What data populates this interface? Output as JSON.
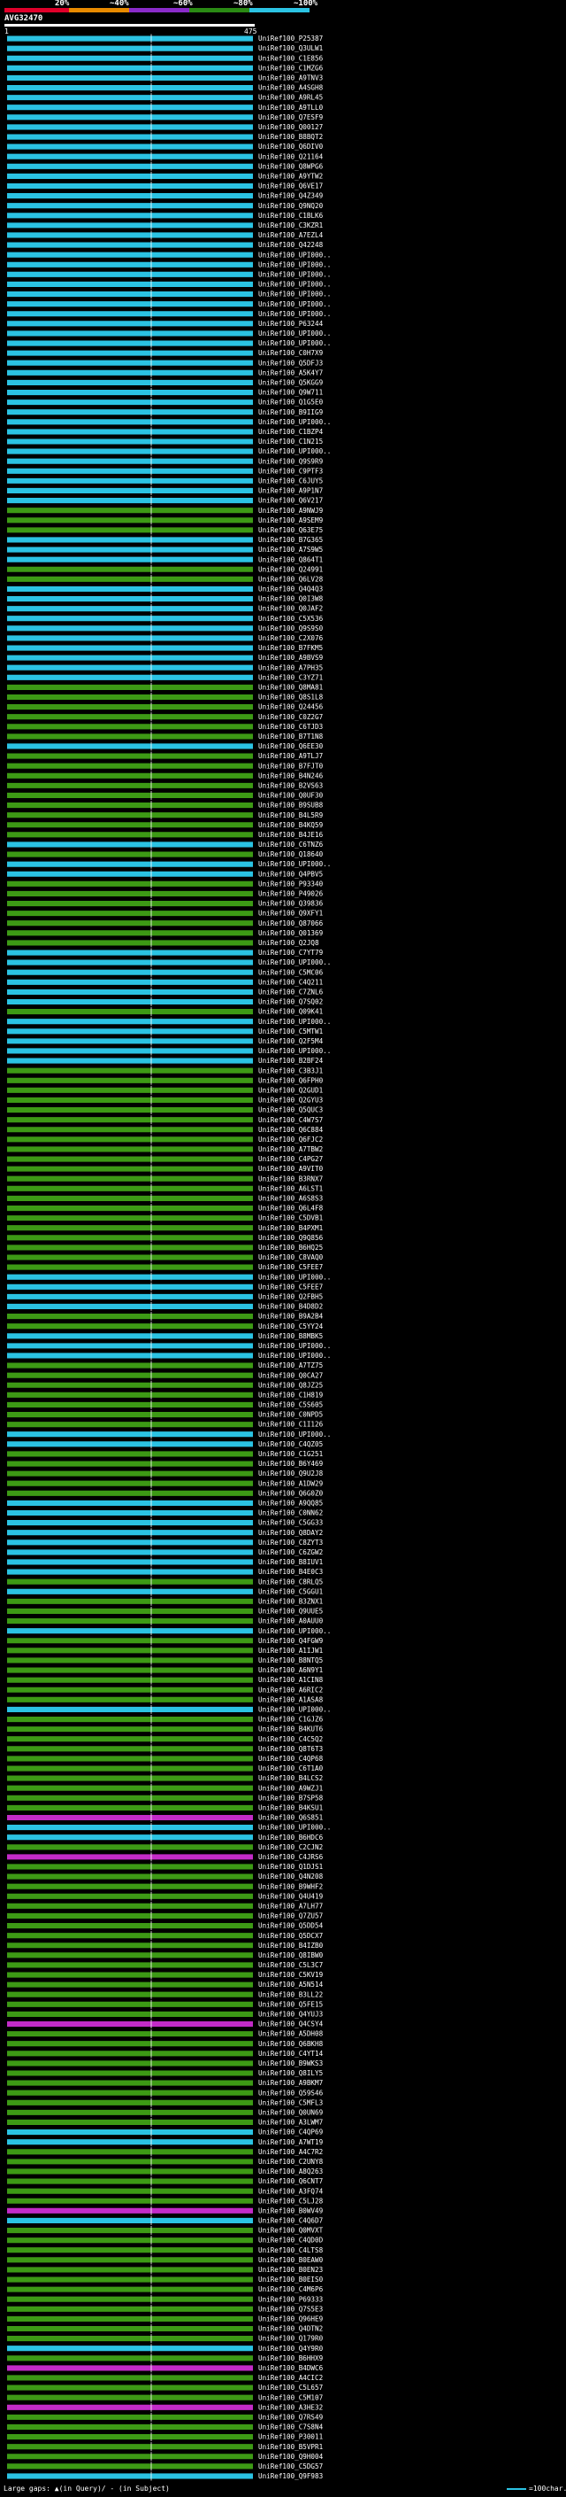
{
  "legend": {
    "labels": [
      "20%",
      "~40%",
      "~60%",
      "~80%",
      "~100%"
    ],
    "colors": [
      "#e0002a",
      "#e88a00",
      "#8a2bc9",
      "#2a8a14",
      "#2bc3e3"
    ]
  },
  "query": {
    "name": "AVG32470",
    "start": "1",
    "end": "475"
  },
  "footer": {
    "gaps_text": "Large gaps: ▲(in Query)/ - (in Subject)",
    "scale_text": "=100char."
  },
  "colors": {
    "green": "#3d9a15",
    "cyan": "#2bc3e3",
    "magenta": "#c32bc8",
    "arrow": "#2bc3e3"
  },
  "hits": [
    {
      "id": "UniRef100_P25387",
      "type": "c"
    },
    {
      "id": "UniRef100_Q3ULW1",
      "type": "c"
    },
    {
      "id": "UniRef100_C1E856",
      "type": "c"
    },
    {
      "id": "UniRef100_C1MZG6",
      "type": "c"
    },
    {
      "id": "UniRef100_A9TNV3",
      "type": "c"
    },
    {
      "id": "UniRef100_A4SGH8",
      "type": "c"
    },
    {
      "id": "UniRef100_A9RL45",
      "type": "c"
    },
    {
      "id": "UniRef100_A9TLL0",
      "type": "c"
    },
    {
      "id": "UniRef100_Q7ESF9",
      "type": "c"
    },
    {
      "id": "UniRef100_Q00127",
      "type": "c"
    },
    {
      "id": "UniRef100_B8BQT2",
      "type": "c"
    },
    {
      "id": "UniRef100_Q6DIV0",
      "type": "c"
    },
    {
      "id": "UniRef100_Q21164",
      "type": "c"
    },
    {
      "id": "UniRef100_Q8WPG6",
      "type": "c"
    },
    {
      "id": "UniRef100_A9YTW2",
      "type": "c"
    },
    {
      "id": "UniRef100_Q6VE17",
      "type": "c"
    },
    {
      "id": "UniRef100_Q4Z349",
      "type": "c"
    },
    {
      "id": "UniRef100_Q9NQ20",
      "type": "c"
    },
    {
      "id": "UniRef100_C1BLK6",
      "type": "c"
    },
    {
      "id": "UniRef100_C3KZR1",
      "type": "c"
    },
    {
      "id": "UniRef100_A7EZL4",
      "type": "c"
    },
    {
      "id": "UniRef100_Q42248",
      "type": "c"
    },
    {
      "id": "UniRef100_UPI000..",
      "type": "c"
    },
    {
      "id": "UniRef100_UPI000..",
      "type": "c"
    },
    {
      "id": "UniRef100_UPI000..",
      "type": "c"
    },
    {
      "id": "UniRef100_UPI000..",
      "type": "c"
    },
    {
      "id": "UniRef100_UPI000..",
      "type": "c"
    },
    {
      "id": "UniRef100_UPI000..",
      "type": "c"
    },
    {
      "id": "UniRef100_UPI000..",
      "type": "c"
    },
    {
      "id": "UniRef100_P63244",
      "type": "c"
    },
    {
      "id": "UniRef100_UPI000..",
      "type": "c"
    },
    {
      "id": "UniRef100_UPI000..",
      "type": "c"
    },
    {
      "id": "UniRef100_C0H7X9",
      "type": "c"
    },
    {
      "id": "UniRef100_Q5DFJ3",
      "type": "c"
    },
    {
      "id": "UniRef100_A5K4Y7",
      "type": "c"
    },
    {
      "id": "UniRef100_Q5KGG9",
      "type": "c"
    },
    {
      "id": "UniRef100_Q9W711",
      "type": "c"
    },
    {
      "id": "UniRef100_Q1G5E0",
      "type": "c"
    },
    {
      "id": "UniRef100_B9IIG9",
      "type": "c"
    },
    {
      "id": "UniRef100_UPI000..",
      "type": "c"
    },
    {
      "id": "UniRef100_C1BZP4",
      "type": "c"
    },
    {
      "id": "UniRef100_C1N215",
      "type": "c"
    },
    {
      "id": "UniRef100_UPI000..",
      "type": "c"
    },
    {
      "id": "UniRef100_Q9S9R9",
      "type": "c"
    },
    {
      "id": "UniRef100_C9PTF3",
      "type": "c"
    },
    {
      "id": "UniRef100_C6JUY5",
      "type": "c"
    },
    {
      "id": "UniRef100_A9P1N7",
      "type": "c"
    },
    {
      "id": "UniRef100_Q6V217",
      "type": "c"
    },
    {
      "id": "UniRef100_A9NWJ9",
      "type": "g"
    },
    {
      "id": "UniRef100_A9SEM9",
      "type": "g"
    },
    {
      "id": "UniRef100_Q63E75",
      "type": "g"
    },
    {
      "id": "UniRef100_B7G365",
      "type": "c"
    },
    {
      "id": "UniRef100_A7S9W5",
      "type": "c"
    },
    {
      "id": "UniRef100_Q864T1",
      "type": "c"
    },
    {
      "id": "UniRef100_Q24991",
      "type": "g"
    },
    {
      "id": "UniRef100_Q6LV28",
      "type": "g"
    },
    {
      "id": "UniRef100_Q4Q4Q3",
      "type": "c"
    },
    {
      "id": "UniRef100_Q0I3W8",
      "type": "c"
    },
    {
      "id": "UniRef100_Q0JAF2",
      "type": "c"
    },
    {
      "id": "UniRef100_C5X536",
      "type": "c"
    },
    {
      "id": "UniRef100_Q9S9S0",
      "type": "c"
    },
    {
      "id": "UniRef100_C2X076",
      "type": "c"
    },
    {
      "id": "UniRef100_B7FKM5",
      "type": "c"
    },
    {
      "id": "UniRef100_A9BVS9",
      "type": "c"
    },
    {
      "id": "UniRef100_A7PH35",
      "type": "c"
    },
    {
      "id": "UniRef100_C3YZ71",
      "type": "c"
    },
    {
      "id": "UniRef100_Q8MA81",
      "type": "g"
    },
    {
      "id": "UniRef100_Q8S1L8",
      "type": "g"
    },
    {
      "id": "UniRef100_Q24456",
      "type": "g"
    },
    {
      "id": "UniRef100_C0Z2G7",
      "type": "g"
    },
    {
      "id": "UniRef100_C6TJD3",
      "type": "g"
    },
    {
      "id": "UniRef100_B7T1N8",
      "type": "g"
    },
    {
      "id": "UniRef100_Q6EE30",
      "type": "c"
    },
    {
      "id": "UniRef100_A9TLJ7",
      "type": "g"
    },
    {
      "id": "UniRef100_B7FJT0",
      "type": "g"
    },
    {
      "id": "UniRef100_B4N246",
      "type": "g"
    },
    {
      "id": "UniRef100_B2VS63",
      "type": "g"
    },
    {
      "id": "UniRef100_Q0UF30",
      "type": "g"
    },
    {
      "id": "UniRef100_B9SUB8",
      "type": "g"
    },
    {
      "id": "UniRef100_B4L5R9",
      "type": "g"
    },
    {
      "id": "UniRef100_B4KQ59",
      "type": "g"
    },
    {
      "id": "UniRef100_B4JE16",
      "type": "g"
    },
    {
      "id": "UniRef100_C6TNZ6",
      "type": "c"
    },
    {
      "id": "UniRef100_Q18640",
      "type": "g"
    },
    {
      "id": "UniRef100_UPI000..",
      "type": "c"
    },
    {
      "id": "UniRef100_Q4PBV5",
      "type": "c"
    },
    {
      "id": "UniRef100_P93340",
      "type": "g"
    },
    {
      "id": "UniRef100_P49026",
      "type": "g"
    },
    {
      "id": "UniRef100_Q39836",
      "type": "g"
    },
    {
      "id": "UniRef100_Q9XFY1",
      "type": "g"
    },
    {
      "id": "UniRef100_Q87066",
      "type": "g"
    },
    {
      "id": "UniRef100_Q01369",
      "type": "g"
    },
    {
      "id": "UniRef100_Q2JQ8",
      "type": "g"
    },
    {
      "id": "UniRef100_C7YT79",
      "type": "c"
    },
    {
      "id": "UniRef100_UPI000..",
      "type": "c"
    },
    {
      "id": "UniRef100_C5MC06",
      "type": "c"
    },
    {
      "id": "UniRef100_C4Q211",
      "type": "c"
    },
    {
      "id": "UniRef100_C7ZNL6",
      "type": "c"
    },
    {
      "id": "UniRef100_Q7SQ02",
      "type": "c"
    },
    {
      "id": "UniRef100_Q09K41",
      "type": "g"
    },
    {
      "id": "UniRef100_UPI000..",
      "type": "c"
    },
    {
      "id": "UniRef100_C5MTW1",
      "type": "c"
    },
    {
      "id": "UniRef100_Q2F5M4",
      "type": "c"
    },
    {
      "id": "UniRef100_UPI000..",
      "type": "c"
    },
    {
      "id": "UniRef100_B2BF24",
      "type": "c"
    },
    {
      "id": "UniRef100_C3B3J1",
      "type": "g"
    },
    {
      "id": "UniRef100_Q6FPH0",
      "type": "g"
    },
    {
      "id": "UniRef100_Q2GUD1",
      "type": "g"
    },
    {
      "id": "UniRef100_Q2GYU3",
      "type": "g"
    },
    {
      "id": "UniRef100_Q5QUC3",
      "type": "g"
    },
    {
      "id": "UniRef100_C4W7S7",
      "type": "g"
    },
    {
      "id": "UniRef100_Q6C884",
      "type": "g"
    },
    {
      "id": "UniRef100_Q6FJC2",
      "type": "g"
    },
    {
      "id": "UniRef100_A7TBW2",
      "type": "g"
    },
    {
      "id": "UniRef100_C4PG27",
      "type": "g"
    },
    {
      "id": "UniRef100_A9VIT0",
      "type": "g"
    },
    {
      "id": "UniRef100_B3RNX7",
      "type": "g"
    },
    {
      "id": "UniRef100_A6LST1",
      "type": "g"
    },
    {
      "id": "UniRef100_A6S8S3",
      "type": "g"
    },
    {
      "id": "UniRef100_Q6L4F8",
      "type": "g"
    },
    {
      "id": "UniRef100_C5DVB1",
      "type": "g"
    },
    {
      "id": "UniRef100_B4PXM1",
      "type": "g"
    },
    {
      "id": "UniRef100_Q9Q856",
      "type": "g"
    },
    {
      "id": "UniRef100_B6HQ25",
      "type": "g"
    },
    {
      "id": "UniRef100_C8VAQ0",
      "type": "g"
    },
    {
      "id": "UniRef100_C5FEE7",
      "type": "g"
    },
    {
      "id": "UniRef100_UPI000..",
      "type": "c"
    },
    {
      "id": "UniRef100_C5FEE7",
      "type": "c"
    },
    {
      "id": "UniRef100_Q2FBH5",
      "type": "c"
    },
    {
      "id": "UniRef100_B4D8D2",
      "type": "c"
    },
    {
      "id": "UniRef100_B9A2B4",
      "type": "g"
    },
    {
      "id": "UniRef100_C5YY24",
      "type": "g"
    },
    {
      "id": "UniRef100_B8MBK5",
      "type": "c"
    },
    {
      "id": "UniRef100_UPI000..",
      "type": "c"
    },
    {
      "id": "UniRef100_UPI000..",
      "type": "c"
    },
    {
      "id": "UniRef100_A7TZ75",
      "type": "g"
    },
    {
      "id": "UniRef100_Q0CA27",
      "type": "g"
    },
    {
      "id": "UniRef100_Q8JZ25",
      "type": "g"
    },
    {
      "id": "UniRef100_C1H819",
      "type": "g"
    },
    {
      "id": "UniRef100_C5S605",
      "type": "g"
    },
    {
      "id": "UniRef100_C0NPD5",
      "type": "g"
    },
    {
      "id": "UniRef100_C1I126",
      "type": "g"
    },
    {
      "id": "UniRef100_UPI000..",
      "type": "c"
    },
    {
      "id": "UniRef100_C4QZ05",
      "type": "c"
    },
    {
      "id": "UniRef100_C1G251",
      "type": "g"
    },
    {
      "id": "UniRef100_B6Y469",
      "type": "g"
    },
    {
      "id": "UniRef100_Q9U2J8",
      "type": "g"
    },
    {
      "id": "UniRef100_A1DW29",
      "type": "g"
    },
    {
      "id": "UniRef100_Q6G0Z0",
      "type": "g"
    },
    {
      "id": "UniRef100_A9QQ85",
      "type": "c"
    },
    {
      "id": "UniRef100_C0NN62",
      "type": "c"
    },
    {
      "id": "UniRef100_C5GG33",
      "type": "c"
    },
    {
      "id": "UniRef100_Q8DAY2",
      "type": "c"
    },
    {
      "id": "UniRef100_C8ZYT3",
      "type": "c"
    },
    {
      "id": "UniRef100_C6ZGW2",
      "type": "c"
    },
    {
      "id": "UniRef100_B8IUV1",
      "type": "c"
    },
    {
      "id": "UniRef100_B4E0C3",
      "type": "c"
    },
    {
      "id": "UniRef100_C8RLQ5",
      "type": "g"
    },
    {
      "id": "UniRef100_C5GGU1",
      "type": "c"
    },
    {
      "id": "UniRef100_B3ZNX1",
      "type": "g"
    },
    {
      "id": "UniRef100_Q9UUE5",
      "type": "g"
    },
    {
      "id": "UniRef100_A0AUU0",
      "type": "g"
    },
    {
      "id": "UniRef100_UPI000..",
      "type": "c"
    },
    {
      "id": "UniRef100_Q4FGW9",
      "type": "g"
    },
    {
      "id": "UniRef100_A1IJW1",
      "type": "g"
    },
    {
      "id": "UniRef100_B8NTQ5",
      "type": "g"
    },
    {
      "id": "UniRef100_A6N9Y1",
      "type": "g"
    },
    {
      "id": "UniRef100_A1CIN8",
      "type": "g"
    },
    {
      "id": "UniRef100_A6RIC2",
      "type": "g"
    },
    {
      "id": "UniRef100_A1ASA8",
      "type": "g"
    },
    {
      "id": "UniRef100_UPI000..",
      "type": "c"
    },
    {
      "id": "UniRef100_C1GJZ6",
      "type": "g"
    },
    {
      "id": "UniRef100_B4KUT6",
      "type": "g"
    },
    {
      "id": "UniRef100_C4C5Q2",
      "type": "g"
    },
    {
      "id": "UniRef100_Q8T6T3",
      "type": "g"
    },
    {
      "id": "UniRef100_C4QP68",
      "type": "g"
    },
    {
      "id": "UniRef100_C6T1A0",
      "type": "g"
    },
    {
      "id": "UniRef100_B4LCS2",
      "type": "g"
    },
    {
      "id": "UniRef100_A9WZJ1",
      "type": "g"
    },
    {
      "id": "UniRef100_B7SP58",
      "type": "g"
    },
    {
      "id": "UniRef100_B4KSU1",
      "type": "g"
    },
    {
      "id": "UniRef100_Q6S851",
      "type": "m"
    },
    {
      "id": "UniRef100_UPI000..",
      "type": "c"
    },
    {
      "id": "UniRef100_B6HDC6",
      "type": "c"
    },
    {
      "id": "UniRef100_C2CJN2",
      "type": "g"
    },
    {
      "id": "UniRef100_C4JRS6",
      "type": "m"
    },
    {
      "id": "UniRef100_Q1DJS1",
      "type": "g"
    },
    {
      "id": "UniRef100_Q4N208",
      "type": "g"
    },
    {
      "id": "UniRef100_B9WHF2",
      "type": "g"
    },
    {
      "id": "UniRef100_Q4U419",
      "type": "g"
    },
    {
      "id": "UniRef100_A7LH77",
      "type": "g"
    },
    {
      "id": "UniRef100_Q7ZU57",
      "type": "g"
    },
    {
      "id": "UniRef100_Q5DD54",
      "type": "g"
    },
    {
      "id": "UniRef100_Q5DCX7",
      "type": "g"
    },
    {
      "id": "UniRef100_B4IZB0",
      "type": "g"
    },
    {
      "id": "UniRef100_Q8IBW0",
      "type": "g"
    },
    {
      "id": "UniRef100_C5L3C7",
      "type": "g"
    },
    {
      "id": "UniRef100_C5KV19",
      "type": "g"
    },
    {
      "id": "UniRef100_A5N514",
      "type": "g"
    },
    {
      "id": "UniRef100_B3LL22",
      "type": "g"
    },
    {
      "id": "UniRef100_Q5FE15",
      "type": "g"
    },
    {
      "id": "UniRef100_Q4YUJ3",
      "type": "g"
    },
    {
      "id": "UniRef100_Q4CSY4",
      "type": "m"
    },
    {
      "id": "UniRef100_A5DH08",
      "type": "g"
    },
    {
      "id": "UniRef100_Q6BKH8",
      "type": "g"
    },
    {
      "id": "UniRef100_C4YT14",
      "type": "g"
    },
    {
      "id": "UniRef100_B9WKS3",
      "type": "g"
    },
    {
      "id": "UniRef100_Q8ILY5",
      "type": "g"
    },
    {
      "id": "UniRef100_A9BKM7",
      "type": "g"
    },
    {
      "id": "UniRef100_Q59S46",
      "type": "g"
    },
    {
      "id": "UniRef100_C5MFL3",
      "type": "g"
    },
    {
      "id": "UniRef100_Q0UN69",
      "type": "g"
    },
    {
      "id": "UniRef100_A3LWM7",
      "type": "g"
    },
    {
      "id": "UniRef100_C4QP69",
      "type": "c"
    },
    {
      "id": "UniRef100_A7WT19",
      "type": "c"
    },
    {
      "id": "UniRef100_A4C7R2",
      "type": "g"
    },
    {
      "id": "UniRef100_C2UNY8",
      "type": "g"
    },
    {
      "id": "UniRef100_A8Q263",
      "type": "g"
    },
    {
      "id": "UniRef100_Q6CNT7",
      "type": "g"
    },
    {
      "id": "UniRef100_A3FQ74",
      "type": "g"
    },
    {
      "id": "UniRef100_C5LJ28",
      "type": "g"
    },
    {
      "id": "UniRef100_B0WV49",
      "type": "m"
    },
    {
      "id": "UniRef100_C4Q6D7",
      "type": "c"
    },
    {
      "id": "UniRef100_Q0MVXT",
      "type": "g"
    },
    {
      "id": "UniRef100_C4QD0D",
      "type": "g"
    },
    {
      "id": "UniRef100_C4LTS8",
      "type": "g"
    },
    {
      "id": "UniRef100_B0EAW0",
      "type": "g"
    },
    {
      "id": "UniRef100_B0EN23",
      "type": "g"
    },
    {
      "id": "UniRef100_B0EIS0",
      "type": "g"
    },
    {
      "id": "UniRef100_C4M6P6",
      "type": "g"
    },
    {
      "id": "UniRef100_P69333",
      "type": "g"
    },
    {
      "id": "UniRef100_Q7S5E3",
      "type": "g"
    },
    {
      "id": "UniRef100_Q96HE9",
      "type": "g"
    },
    {
      "id": "UniRef100_Q4DTN2",
      "type": "g"
    },
    {
      "id": "UniRef100_Q179R0",
      "type": "g"
    },
    {
      "id": "UniRef100_Q4Y9R0",
      "type": "c"
    },
    {
      "id": "UniRef100_B6HHX9",
      "type": "g"
    },
    {
      "id": "UniRef100_B4DWC6",
      "type": "m"
    },
    {
      "id": "UniRef100_A4CIC2",
      "type": "g"
    },
    {
      "id": "UniRef100_C5L657",
      "type": "g"
    },
    {
      "id": "UniRef100_C5M107",
      "type": "g"
    },
    {
      "id": "UniRef100_A3HE32",
      "type": "m"
    },
    {
      "id": "UniRef100_Q7RS49",
      "type": "g"
    },
    {
      "id": "UniRef100_C7S8N4",
      "type": "g"
    },
    {
      "id": "UniRef100_P30011",
      "type": "g"
    },
    {
      "id": "UniRef100_B5VPR1",
      "type": "g"
    },
    {
      "id": "UniRef100_Q9H004",
      "type": "g"
    },
    {
      "id": "UniRef100_C5DG57",
      "type": "g"
    },
    {
      "id": "UniRef100_Q9F983",
      "type": "c"
    }
  ]
}
